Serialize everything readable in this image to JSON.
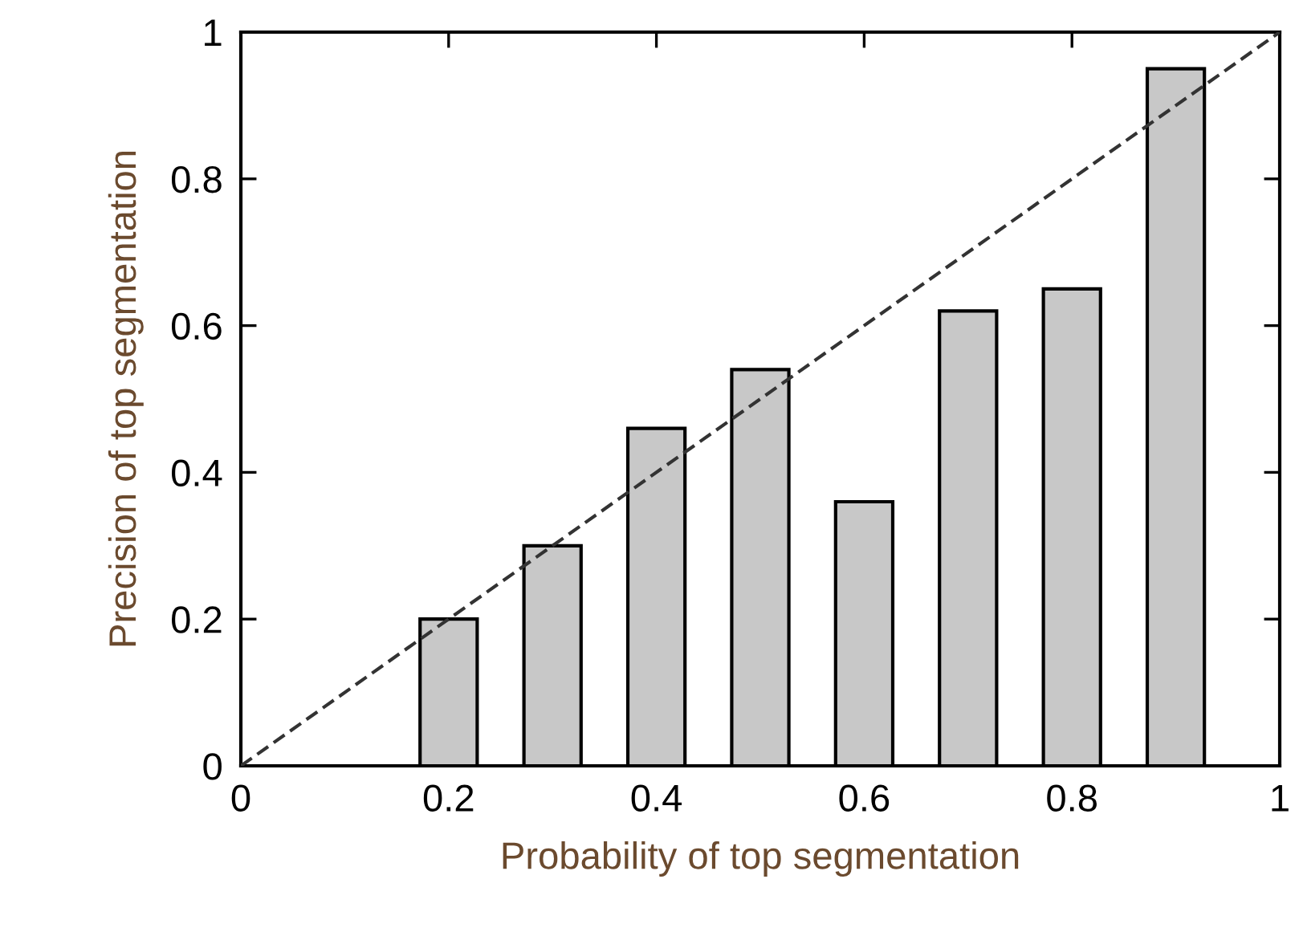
{
  "chart_data": {
    "type": "bar",
    "xlabel": "Probability of top segmentation",
    "ylabel": "Precision of top segmentation",
    "series": [
      {
        "color": "#c8c8c8",
        "x": [
          0.2,
          0.3,
          0.4,
          0.5,
          0.6,
          0.7,
          0.8,
          0.9
        ],
        "values": [
          0.2,
          0.3,
          0.46,
          0.54,
          0.36,
          0.62,
          0.65,
          0.95
        ]
      },
      {
        "type": "line",
        "color": "#333333",
        "line_style": "dashed",
        "x": [
          0,
          1
        ],
        "values": [
          0,
          1
        ]
      }
    ],
    "xlim": [
      0,
      1
    ],
    "ylim": [
      0,
      1
    ],
    "xticks": [
      0,
      0.2,
      0.4,
      0.6,
      0.8,
      1
    ],
    "yticks": [
      0,
      0.2,
      0.4,
      0.6,
      0.8,
      1
    ],
    "grid": false,
    "legend": false
  }
}
